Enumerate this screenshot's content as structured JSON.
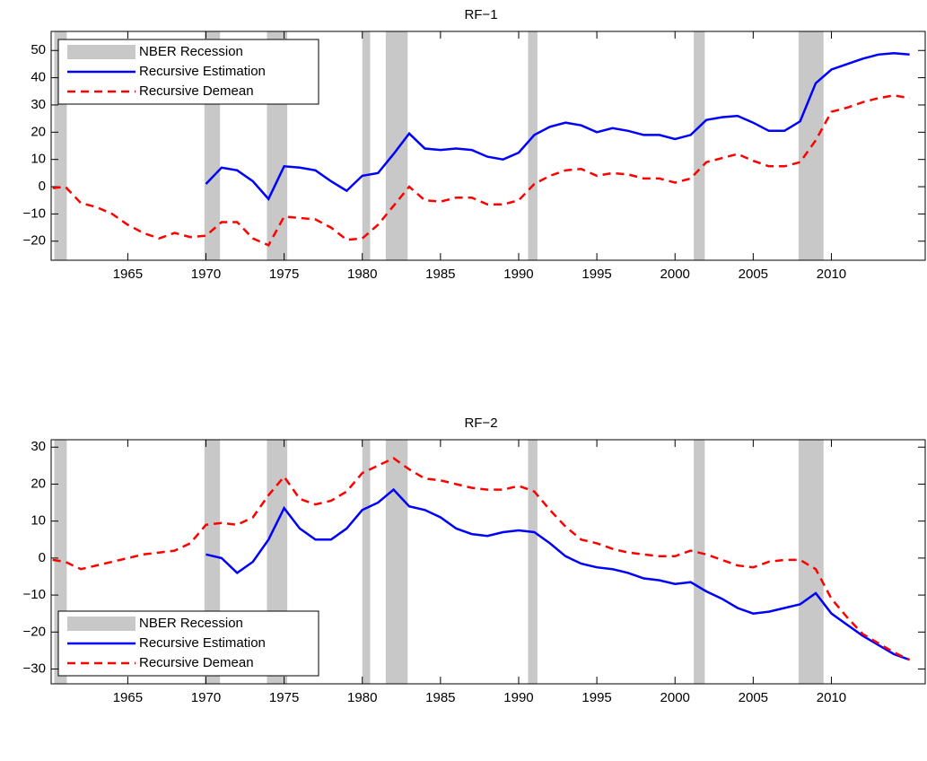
{
  "chart_data": [
    {
      "type": "line",
      "title": "RF−1",
      "legend": "upper left",
      "xlim": [
        1960.1,
        2016
      ],
      "xticks": [
        1965,
        1970,
        1975,
        1980,
        1985,
        1990,
        1995,
        2000,
        2005,
        2010
      ],
      "ylim": [
        -27,
        57
      ],
      "yticks": [
        {
          "value": -20,
          "label": "−20"
        },
        {
          "value": -10,
          "label": "−10"
        },
        0,
        10,
        20,
        30,
        40,
        50
      ],
      "recessions": {
        "name": "NBER Recession",
        "color": "#c8c8c8",
        "periods": [
          [
            1960.3,
            1961.1
          ],
          [
            1969.9,
            1970.9
          ],
          [
            1973.9,
            1975.2
          ],
          [
            1980.0,
            1980.5
          ],
          [
            1981.5,
            1982.9
          ],
          [
            1990.6,
            1991.2
          ],
          [
            2001.2,
            2001.9
          ],
          [
            2007.9,
            2009.5
          ]
        ]
      },
      "x": [
        1960.2,
        1961,
        1962,
        1963,
        1964,
        1965,
        1966,
        1967,
        1968,
        1969,
        1970,
        1971,
        1972,
        1973,
        1974,
        1975,
        1976,
        1977,
        1978,
        1979,
        1980,
        1981,
        1982,
        1983,
        1984,
        1985,
        1986,
        1987,
        1988,
        1989,
        1990,
        1991,
        1992,
        1993,
        1994,
        1995,
        1996,
        1997,
        1998,
        1999,
        2000,
        2001,
        2002,
        2003,
        2004,
        2005,
        2006,
        2007,
        2008,
        2009,
        2010,
        2011,
        2012,
        2013,
        2014,
        2015
      ],
      "series": [
        {
          "name": "Recursive Estimation",
          "color": "#0000ff",
          "dash": false,
          "values": [
            null,
            null,
            null,
            null,
            null,
            null,
            null,
            null,
            null,
            null,
            1,
            7,
            6,
            2,
            -4.5,
            7.5,
            7,
            6,
            2,
            -1.5,
            4,
            5,
            12,
            19.5,
            14,
            13.5,
            14,
            13.5,
            11,
            10,
            12.5,
            19,
            22,
            23.5,
            22.5,
            20,
            21.5,
            20.5,
            19,
            19,
            17.5,
            19,
            24.5,
            25.5,
            26,
            23.5,
            20.5,
            20.5,
            24,
            38,
            43,
            45,
            47,
            48.5,
            49,
            48.5
          ]
        },
        {
          "name": "Recursive Demean",
          "color": "#ff0000",
          "dash": true,
          "values": [
            -0.5,
            0,
            -6,
            -7.5,
            -10,
            -14,
            -17,
            -19,
            -17,
            -18.5,
            -18,
            -13,
            -13,
            -19,
            -21.5,
            -11,
            -11.5,
            -12,
            -15,
            -19.5,
            -19,
            -14,
            -7,
            0,
            -5,
            -5.5,
            -4,
            -4,
            -6.5,
            -6.5,
            -5,
            1,
            4,
            6,
            6.5,
            4,
            5,
            4.5,
            3,
            3,
            1.5,
            3,
            9,
            10.5,
            12,
            9.5,
            7.5,
            7.5,
            9,
            17,
            27.5,
            29,
            31,
            32.5,
            33.5,
            32.5
          ]
        }
      ]
    },
    {
      "type": "line",
      "title": "RF−2",
      "legend": "lower left",
      "xlim": [
        1960.1,
        2016
      ],
      "xticks": [
        1965,
        1970,
        1975,
        1980,
        1985,
        1990,
        1995,
        2000,
        2005,
        2010
      ],
      "ylim": [
        -34,
        32
      ],
      "yticks": [
        {
          "value": -30,
          "label": "−30"
        },
        {
          "value": -20,
          "label": "−20"
        },
        {
          "value": -10,
          "label": "−10"
        },
        0,
        10,
        20,
        30
      ],
      "recessions": {
        "name": "NBER Recession",
        "color": "#c8c8c8",
        "periods": [
          [
            1960.3,
            1961.1
          ],
          [
            1969.9,
            1970.9
          ],
          [
            1973.9,
            1975.2
          ],
          [
            1980.0,
            1980.5
          ],
          [
            1981.5,
            1982.9
          ],
          [
            1990.6,
            1991.2
          ],
          [
            2001.2,
            2001.9
          ],
          [
            2007.9,
            2009.5
          ]
        ]
      },
      "x": [
        1960.2,
        1961,
        1962,
        1963,
        1964,
        1965,
        1966,
        1967,
        1968,
        1969,
        1970,
        1971,
        1972,
        1973,
        1974,
        1975,
        1976,
        1977,
        1978,
        1979,
        1980,
        1981,
        1982,
        1983,
        1984,
        1985,
        1986,
        1987,
        1988,
        1989,
        1990,
        1991,
        1992,
        1993,
        1994,
        1995,
        1996,
        1997,
        1998,
        1999,
        2000,
        2001,
        2002,
        2003,
        2004,
        2005,
        2006,
        2007,
        2008,
        2009,
        2010,
        2011,
        2012,
        2013,
        2014,
        2015
      ],
      "series": [
        {
          "name": "Recursive Estimation",
          "color": "#0000ff",
          "dash": false,
          "values": [
            null,
            null,
            null,
            null,
            null,
            null,
            null,
            null,
            null,
            null,
            1,
            0,
            -4,
            -1,
            5,
            13.5,
            8,
            5,
            5,
            8,
            13,
            15,
            18.5,
            14,
            13,
            11,
            8,
            6.5,
            6,
            7,
            7.5,
            7,
            4,
            0.5,
            -1.5,
            -2.5,
            -3,
            -4,
            -5.5,
            -6,
            -7,
            -6.5,
            -9,
            -11,
            -13.5,
            -15,
            -14.5,
            -13.5,
            -12.5,
            -9.5,
            -15,
            -18,
            -21,
            -23.5,
            -26,
            -27.5
          ]
        },
        {
          "name": "Recursive Demean",
          "color": "#ff0000",
          "dash": true,
          "values": [
            -0.5,
            -1,
            -3,
            -2,
            -1,
            0,
            1,
            1.5,
            2,
            4,
            9,
            9.5,
            9,
            11,
            17,
            22,
            16,
            14.5,
            15.5,
            18,
            23,
            25,
            27,
            24,
            21.5,
            21,
            20,
            19,
            18.5,
            18.5,
            19.5,
            18,
            13,
            8.5,
            5,
            4,
            2.5,
            1.5,
            1,
            0.5,
            0.5,
            2,
            1,
            -0.5,
            -2,
            -2.5,
            -1,
            -0.5,
            -0.5,
            -3,
            -11,
            -16,
            -20.5,
            -23,
            -25.5,
            -27.5
          ]
        }
      ]
    }
  ]
}
